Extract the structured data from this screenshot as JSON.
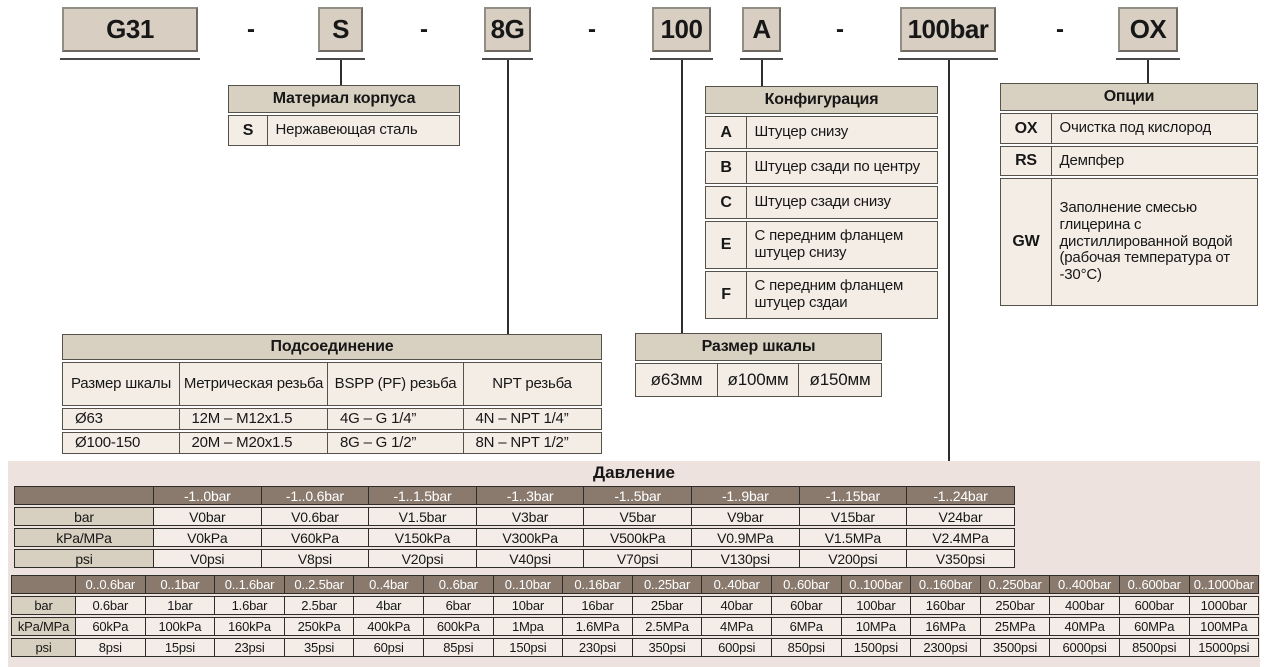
{
  "code_row": {
    "separator": "-",
    "segments": [
      {
        "label": "G31"
      },
      {
        "label": "S"
      },
      {
        "label": "8G"
      },
      {
        "label": "100"
      },
      {
        "label": "A"
      },
      {
        "label": "100bar"
      },
      {
        "label": "OX"
      }
    ]
  },
  "tables": {
    "material": {
      "title": "Материал корпуса",
      "rows": [
        {
          "code": "S",
          "desc": "Нержавеющая сталь"
        }
      ]
    },
    "configuration": {
      "title": "Конфигурация",
      "rows": [
        {
          "code": "A",
          "desc": "Штуцер снизу"
        },
        {
          "code": "B",
          "desc": "Штуцер сзади по центру"
        },
        {
          "code": "C",
          "desc": "Штуцер сзади снизу"
        },
        {
          "code": "E",
          "desc": "С передним фланцем штуцер снизу"
        },
        {
          "code": "F",
          "desc": "С передним фланцем штуцер сздаи"
        }
      ]
    },
    "options": {
      "title": "Опции",
      "rows": [
        {
          "code": "OX",
          "desc": "Очистка под кислород"
        },
        {
          "code": "RS",
          "desc": "Демпфер"
        },
        {
          "code": "GW",
          "desc": "Заполнение смесью глицерина с дистиллированной водой (рабочая температура от -30°C)"
        }
      ]
    },
    "connection": {
      "title": "Подсоединение",
      "columns": [
        "Размер шкалы",
        "Метрическая резьба",
        "BSPP (PF) резьба",
        "NPT резьба"
      ],
      "rows": [
        [
          "Ø63",
          "12M – M12x1.5",
          "4G – G 1/4”",
          "4N – NPT 1/4”"
        ],
        [
          "Ø100-150",
          "20M – M20x1.5",
          "8G – G 1/2”",
          "8N – NPT 1/2”"
        ]
      ]
    },
    "dial_size": {
      "title": "Размер шкалы",
      "values": [
        "ø63мм",
        "ø100мм",
        "ø150мм"
      ]
    },
    "pressure": {
      "title": "Давление",
      "vacuum_table": {
        "ranges": [
          "-1..0bar",
          "-1..0.6bar",
          "-1..1.5bar",
          "-1..3bar",
          "-1..5bar",
          "-1..9bar",
          "-1..15bar",
          "-1..24bar"
        ],
        "rows": [
          {
            "label": "bar",
            "values": [
              "V0bar",
              "V0.6bar",
              "V1.5bar",
              "V3bar",
              "V5bar",
              "V9bar",
              "V15bar",
              "V24bar"
            ]
          },
          {
            "label": "kPa/MPa",
            "values": [
              "V0kPa",
              "V60kPa",
              "V150kPa",
              "V300kPa",
              "V500kPa",
              "V0.9MPa",
              "V1.5MPa",
              "V2.4MPa"
            ]
          },
          {
            "label": "psi",
            "values": [
              "V0psi",
              "V8psi",
              "V20psi",
              "V40psi",
              "V70psi",
              "V130psi",
              "V200psi",
              "V350psi"
            ]
          }
        ]
      },
      "gauge_table": {
        "ranges": [
          "0..0.6bar",
          "0..1bar",
          "0..1.6bar",
          "0..2.5bar",
          "0..4bar",
          "0..6bar",
          "0..10bar",
          "0..16bar",
          "0..25bar",
          "0..40bar",
          "0..60bar",
          "0..100bar",
          "0..160bar",
          "0..250bar",
          "0..400bar",
          "0..600bar",
          "0..1000bar"
        ],
        "rows": [
          {
            "label": "bar",
            "values": [
              "0.6bar",
              "1bar",
              "1.6bar",
              "2.5bar",
              "4bar",
              "6bar",
              "10bar",
              "16bar",
              "25bar",
              "40bar",
              "60bar",
              "100bar",
              "160bar",
              "250bar",
              "400bar",
              "600bar",
              "1000bar"
            ]
          },
          {
            "label": "kPa/MPa",
            "values": [
              "60kPa",
              "100kPa",
              "160kPa",
              "250kPa",
              "400kPa",
              "600kPa",
              "1Mpa",
              "1.6MPa",
              "2.5MPa",
              "4MPa",
              "6MPa",
              "10MPa",
              "16MPa",
              "25MPa",
              "40MPa",
              "60MPa",
              "100MPa"
            ]
          },
          {
            "label": "psi",
            "values": [
              "8psi",
              "15psi",
              "23psi",
              "35psi",
              "60psi",
              "85psi",
              "150psi",
              "230psi",
              "350psi",
              "600psi",
              "850psi",
              "1500psi",
              "2300psi",
              "3500psi",
              "6000psi",
              "8500psi",
              "15000psi"
            ]
          }
        ]
      }
    }
  },
  "colors": {
    "box_tan": "#d8cfc2",
    "header_tan": "#d8d1c2",
    "cell_light": "#f4ede6",
    "panel_pink": "#ede2dd",
    "dark_header": "#8a7a6e",
    "label_tan": "#d7cfbf"
  }
}
